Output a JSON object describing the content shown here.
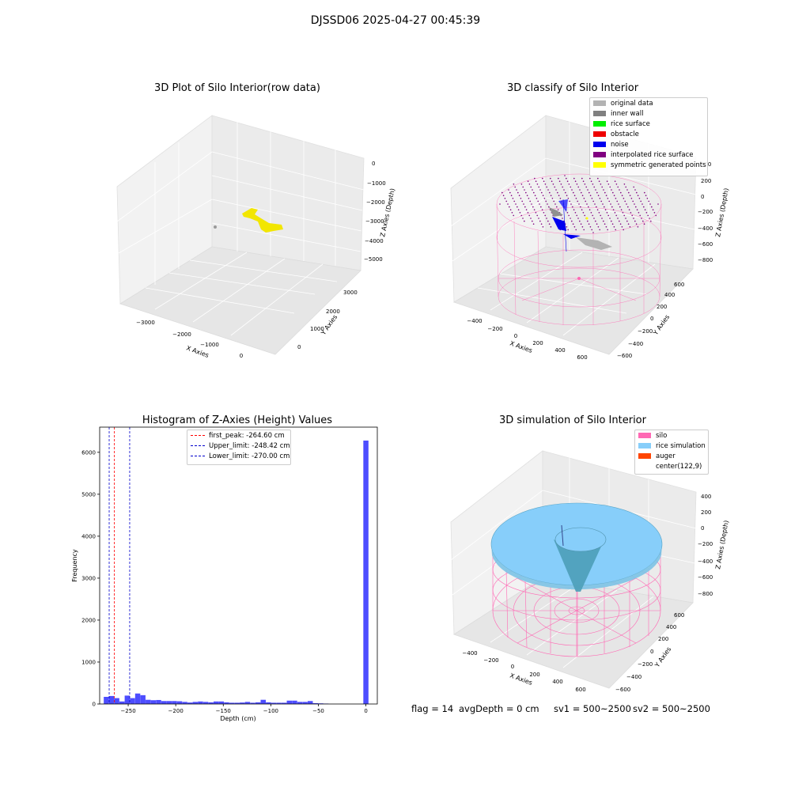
{
  "figure": {
    "suptitle": "DJSSD06 2025-04-27 00:45:39",
    "footer": {
      "flag": "flag = 14",
      "avg_depth": "avgDepth = 0 cm",
      "sv1": "sv1 = 500~2500",
      "sv2": "sv2 = 500~2500"
    }
  },
  "colors": {
    "raw_points": "#f2e600",
    "original_data": "#b3b3b3",
    "inner_wall": "#808080",
    "rice_surface": "#00ee00",
    "obstacle": "#ee0000",
    "noise": "#0000ee",
    "interpolated": "#800080",
    "symmetric": "#ffff00",
    "silo": "#ff69b4",
    "rice_sim": "#87cefa",
    "auger": "#ff4500",
    "hist_bar": "#4d4dff",
    "peak_line": "#ff0000",
    "limit_line": "#0000cc"
  },
  "chart_data": [
    {
      "type": "scatter",
      "projection": "3d",
      "title": "3D Plot of Silo Interior(row data)",
      "xlabel": "X Axies",
      "ylabel": "Y Axies",
      "zlabel": "Z Axies (Depth)",
      "xticks": [
        "−3000",
        "−2000",
        "−1000",
        "0"
      ],
      "yticks": [
        "0",
        "1000",
        "2000",
        "3000"
      ],
      "zticks": [
        "0",
        "−1000",
        "−2000",
        "−3000",
        "−4000",
        "−5000"
      ],
      "series": [
        {
          "name": "",
          "points": [
            [
              -1500,
              2300,
              -2400
            ],
            [
              -1300,
              2250,
              -2500
            ],
            [
              -1000,
              2000,
              -3000
            ],
            [
              -900,
              1900,
              -3100
            ],
            [
              -3000,
              2200,
              -3200
            ]
          ]
        }
      ]
    },
    {
      "type": "scatter",
      "projection": "3d",
      "title": "3D classify of Silo Interior",
      "xlabel": "X Axies",
      "ylabel": "Y Axies",
      "zlabel": "Z Axies (Depth)",
      "xticks": [
        "−400",
        "−200",
        "0",
        "200",
        "400",
        "600"
      ],
      "yticks": [
        "−600",
        "−400",
        "−200",
        "0",
        "200",
        "400",
        "600"
      ],
      "zticks": [
        "200",
        "0",
        "−200",
        "−400",
        "−600",
        "−800"
      ],
      "legend_position": "top-right",
      "legend": [
        {
          "label": "original data",
          "color_key": "original_data"
        },
        {
          "label": "inner wall",
          "color_key": "inner_wall"
        },
        {
          "label": "rice surface",
          "color_key": "rice_surface"
        },
        {
          "label": "obstacle",
          "color_key": "obstacle"
        },
        {
          "label": "noise",
          "color_key": "noise"
        },
        {
          "label": "interpolated rice surface",
          "color_key": "interpolated"
        },
        {
          "label": "symmetric generated points",
          "color_key": "symmetric"
        }
      ]
    },
    {
      "type": "bar",
      "title": "Histogram of Z-Axies (Height) Values",
      "xlabel": "Depth (cm)",
      "ylabel": "Frequency",
      "xlim": [
        -280,
        12
      ],
      "ylim": [
        0,
        6600
      ],
      "xticks": [
        -250,
        -200,
        -150,
        -100,
        -50,
        0
      ],
      "yticks": [
        0,
        1000,
        2000,
        3000,
        4000,
        5000,
        6000
      ],
      "bin_width": 5.4,
      "bins": [
        {
          "x": -273,
          "count": 170
        },
        {
          "x": -267.5,
          "count": 190
        },
        {
          "x": -262,
          "count": 140
        },
        {
          "x": -256.5,
          "count": 60
        },
        {
          "x": -251,
          "count": 200
        },
        {
          "x": -245.5,
          "count": 140
        },
        {
          "x": -240,
          "count": 250
        },
        {
          "x": -234.5,
          "count": 210
        },
        {
          "x": -229,
          "count": 100
        },
        {
          "x": -223.5,
          "count": 90
        },
        {
          "x": -218,
          "count": 95
        },
        {
          "x": -212.5,
          "count": 70
        },
        {
          "x": -207,
          "count": 70
        },
        {
          "x": -201.5,
          "count": 70
        },
        {
          "x": -196,
          "count": 65
        },
        {
          "x": -190.5,
          "count": 50
        },
        {
          "x": -185,
          "count": 35
        },
        {
          "x": -179.5,
          "count": 50
        },
        {
          "x": -174,
          "count": 60
        },
        {
          "x": -168.5,
          "count": 50
        },
        {
          "x": -163,
          "count": 40
        },
        {
          "x": -157.5,
          "count": 60
        },
        {
          "x": -152,
          "count": 60
        },
        {
          "x": -146.5,
          "count": 40
        },
        {
          "x": -141,
          "count": 30
        },
        {
          "x": -135.5,
          "count": 30
        },
        {
          "x": -130,
          "count": 35
        },
        {
          "x": -124.5,
          "count": 50
        },
        {
          "x": -119,
          "count": 30
        },
        {
          "x": -113.5,
          "count": 40
        },
        {
          "x": -108,
          "count": 100
        },
        {
          "x": -102.5,
          "count": 40
        },
        {
          "x": -97,
          "count": 30
        },
        {
          "x": -91.5,
          "count": 30
        },
        {
          "x": -86,
          "count": 30
        },
        {
          "x": -80.5,
          "count": 80
        },
        {
          "x": -75,
          "count": 80
        },
        {
          "x": -69.5,
          "count": 50
        },
        {
          "x": -64,
          "count": 50
        },
        {
          "x": -58.5,
          "count": 70
        },
        {
          "x": -53,
          "count": 20
        },
        {
          "x": -47.5,
          "count": 15
        },
        {
          "x": -42,
          "count": 10
        },
        {
          "x": 0,
          "count": 6280
        }
      ],
      "vlines": [
        {
          "x": -264.6,
          "label": "first_peak: -264.60 cm",
          "color_key": "peak_line"
        },
        {
          "x": -248.42,
          "label": "Upper_limit: -248.42 cm",
          "color_key": "limit_line"
        },
        {
          "x": -270.0,
          "label": "Lower_limit: -270.00 cm",
          "color_key": "limit_line"
        }
      ],
      "legend_position": "top-center"
    },
    {
      "type": "surface",
      "projection": "3d",
      "title": "3D simulation of Silo Interior",
      "xlabel": "X Axies",
      "ylabel": "Y Axies",
      "zlabel": "Z Axies (Depth)",
      "xticks": [
        "−400",
        "−200",
        "0",
        "200",
        "400",
        "600"
      ],
      "yticks": [
        "−600",
        "−400",
        "−200",
        "0",
        "200",
        "400",
        "600"
      ],
      "zticks": [
        "400",
        "200",
        "0",
        "−200",
        "−400",
        "−600",
        "−800"
      ],
      "legend_position": "top-right",
      "legend": [
        {
          "label": "silo",
          "color_key": "silo"
        },
        {
          "label": "rice simulation",
          "color_key": "rice_sim"
        },
        {
          "label": "auger",
          "color_key": "auger"
        },
        {
          "label": "center(122,9)",
          "color_key": ""
        }
      ]
    }
  ]
}
